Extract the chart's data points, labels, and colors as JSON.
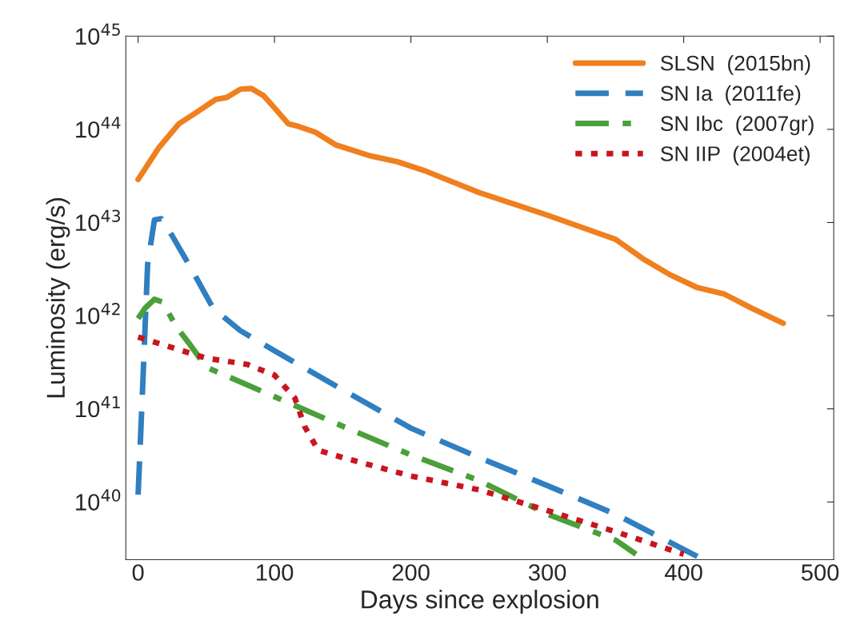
{
  "chart_data": {
    "type": "line",
    "xlabel": "Days since explosion",
    "ylabel": "Luminosity (erg/s)",
    "log": "y",
    "xlim": [
      -9,
      510
    ],
    "xticks": [
      0,
      100,
      200,
      300,
      400,
      500
    ],
    "ylim": [
      2.4e+39,
      1e+45
    ],
    "yticks": [
      {
        "value": 1e+40,
        "label": "10$^{40}$"
      },
      {
        "value": 1e+41,
        "label": "10$^{41}$"
      },
      {
        "value": 1e+42,
        "label": "10$^{42}$"
      },
      {
        "value": 1e+43,
        "label": "10$^{43}$"
      },
      {
        "value": 1e+44,
        "label": "10$^{44}$"
      },
      {
        "value": 1e+45,
        "label": "10$^{45}$"
      }
    ],
    "grid": false,
    "legend": "top right",
    "series": [
      {
        "name": "SLSN  (2015bn)",
        "color": "#f07f1e",
        "line_style": "solid",
        "x": [
          0,
          15,
          30,
          45,
          57,
          65,
          75,
          83,
          92,
          100,
          110,
          118,
          130,
          145,
          170,
          190,
          210,
          250,
          300,
          350,
          370,
          390,
          410,
          430,
          450,
          473
        ],
        "values": [
          2.9e+43,
          6.3e+43,
          1.15e+44,
          1.6e+44,
          2.1e+44,
          2.2e+44,
          2.7e+44,
          2.75e+44,
          2.3e+44,
          1.7e+44,
          1.15e+44,
          1.07e+44,
          9.3e+43,
          6.8e+43,
          5.2e+43,
          4.5e+43,
          3.6e+43,
          2.1e+43,
          1.2e+43,
          6.6e+42,
          4.1e+42,
          2.75e+42,
          2e+42,
          1.7e+42,
          1.2e+42,
          8.3e+41
        ]
      },
      {
        "name": "SN Ia  (2011fe)",
        "color": "#2f7fc1",
        "line_style": "dashed",
        "x": [
          0,
          3,
          7,
          12,
          17,
          25,
          40,
          55,
          75,
          100,
          150,
          200,
          250,
          300,
          350,
          410
        ],
        "values": [
          1.2e+40,
          1.3e+41,
          3.6e+42,
          1.07e+43,
          1.1e+43,
          7.2e+42,
          3e+42,
          1.2e+42,
          6.9e+41,
          4.2e+41,
          1.6e+41,
          6.2e+40,
          3e+40,
          1.5e+40,
          7.4e+39,
          2.6e+39
        ]
      },
      {
        "name": "SN Ibc  (2007gr)",
        "color": "#4aa03a",
        "line_style": "dashdot",
        "x": [
          0,
          5,
          12,
          18,
          28,
          38,
          50,
          100,
          150,
          200,
          250,
          300,
          350,
          365
        ],
        "values": [
          9.3e+41,
          1.2e+42,
          1.5e+42,
          1.4e+42,
          7.6e+41,
          4.9e+41,
          2.8e+41,
          1.35e+41,
          6.5e+40,
          3.2e+40,
          1.7e+40,
          7.4e+39,
          3.9e+39,
          2.75e+39
        ]
      },
      {
        "name": "SN IIP  (2004et)",
        "color": "#c8161e",
        "line_style": "dotted",
        "x": [
          0,
          50,
          80,
          100,
          115,
          122,
          132,
          150,
          200,
          250,
          300,
          350,
          400
        ],
        "values": [
          5.9e+41,
          3.5e+41,
          3e+41,
          2.3e+41,
          1.3e+41,
          6.5e+40,
          3.6e+40,
          3e+40,
          1.9e+40,
          1.35e+40,
          8.1e+39,
          4.8e+39,
          2.75e+39
        ]
      }
    ]
  }
}
